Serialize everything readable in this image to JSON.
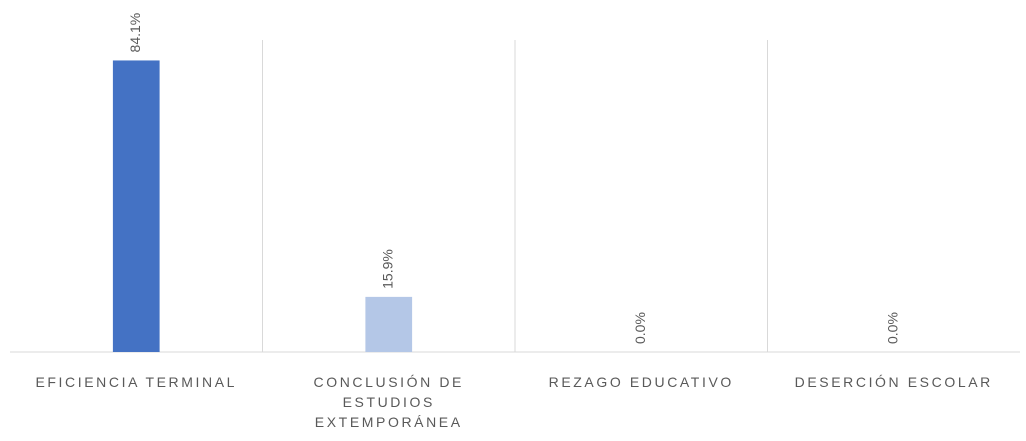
{
  "chart_data": {
    "type": "bar",
    "categories": [
      "EFICIENCIA TERMINAL",
      "CONCLUSIÓN DE ESTUDIOS EXTEMPORÁNEA",
      "REZAGO EDUCATIVO",
      "DESERCIÓN ESCOLAR"
    ],
    "values": [
      84.1,
      15.9,
      0,
      0
    ],
    "value_labels": [
      "84.1%",
      "15.9%",
      "0.0%",
      "0.0%"
    ],
    "colors": [
      "#4472c4",
      "#b4c7e7",
      "#4472c4",
      "#4472c4"
    ],
    "ylim": [
      0,
      90
    ]
  }
}
